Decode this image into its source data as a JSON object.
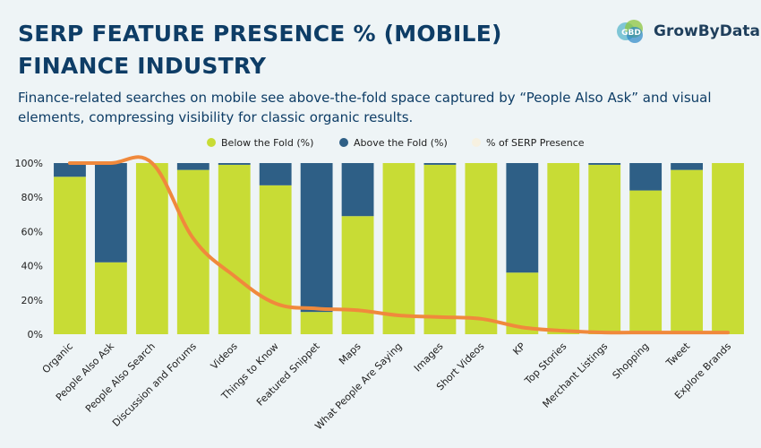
{
  "header": {
    "title_line1": "SERP FEATURE PRESENCE % (MOBILE)",
    "title_line2": "FINANCE INDUSTRY",
    "subtitle": "Finance-related searches on mobile see above-the-fold space captured by “People Also Ask” and visual elements, compressing visibility for classic organic results."
  },
  "brand": {
    "logo_text": "GBD",
    "name_part1": "GrowBy",
    "name_part2": "Data"
  },
  "colors": {
    "below": "#c8dc35",
    "above": "#2e5f86",
    "line": "#f0893c",
    "legend_line": "#f7f1e1"
  },
  "chart_data": {
    "type": "bar",
    "stacked": true,
    "categories": [
      "Organic",
      "People Also Ask",
      "People Also Search",
      "Discussion and Forums",
      "Videos",
      "Things to Know",
      "Featured Snippet",
      "Maps",
      "What People Are Saying",
      "Images",
      "Short Videos",
      "KP",
      "Top Stories",
      "Merchant Listings",
      "Shopping",
      "Tweet",
      "Explore Brands"
    ],
    "series": [
      {
        "name": "Below the Fold (%)",
        "values": [
          92,
          42,
          100,
          96,
          99,
          87,
          13,
          69,
          100,
          99,
          100,
          36,
          100,
          99,
          84,
          96,
          100
        ]
      },
      {
        "name": "Above the Fold (%)",
        "values": [
          8,
          58,
          0,
          4,
          1,
          13,
          87,
          31,
          0,
          1,
          0,
          64,
          0,
          1,
          16,
          4,
          0
        ]
      }
    ],
    "line_series": {
      "name": "% of SERP Presence",
      "values": [
        100,
        100,
        100,
        56,
        34,
        18,
        15,
        14,
        11,
        10,
        9,
        4,
        2,
        1,
        1,
        1,
        1
      ]
    },
    "y_ticks": [
      "0%",
      "20%",
      "40%",
      "60%",
      "80%",
      "100%"
    ],
    "y_tick_values": [
      0,
      20,
      40,
      60,
      80,
      100
    ],
    "ylim": [
      0,
      100
    ],
    "legend": [
      "Below the Fold (%)",
      "Above the Fold (%)",
      "% of SERP Presence"
    ],
    "legend_position": "top-center"
  }
}
